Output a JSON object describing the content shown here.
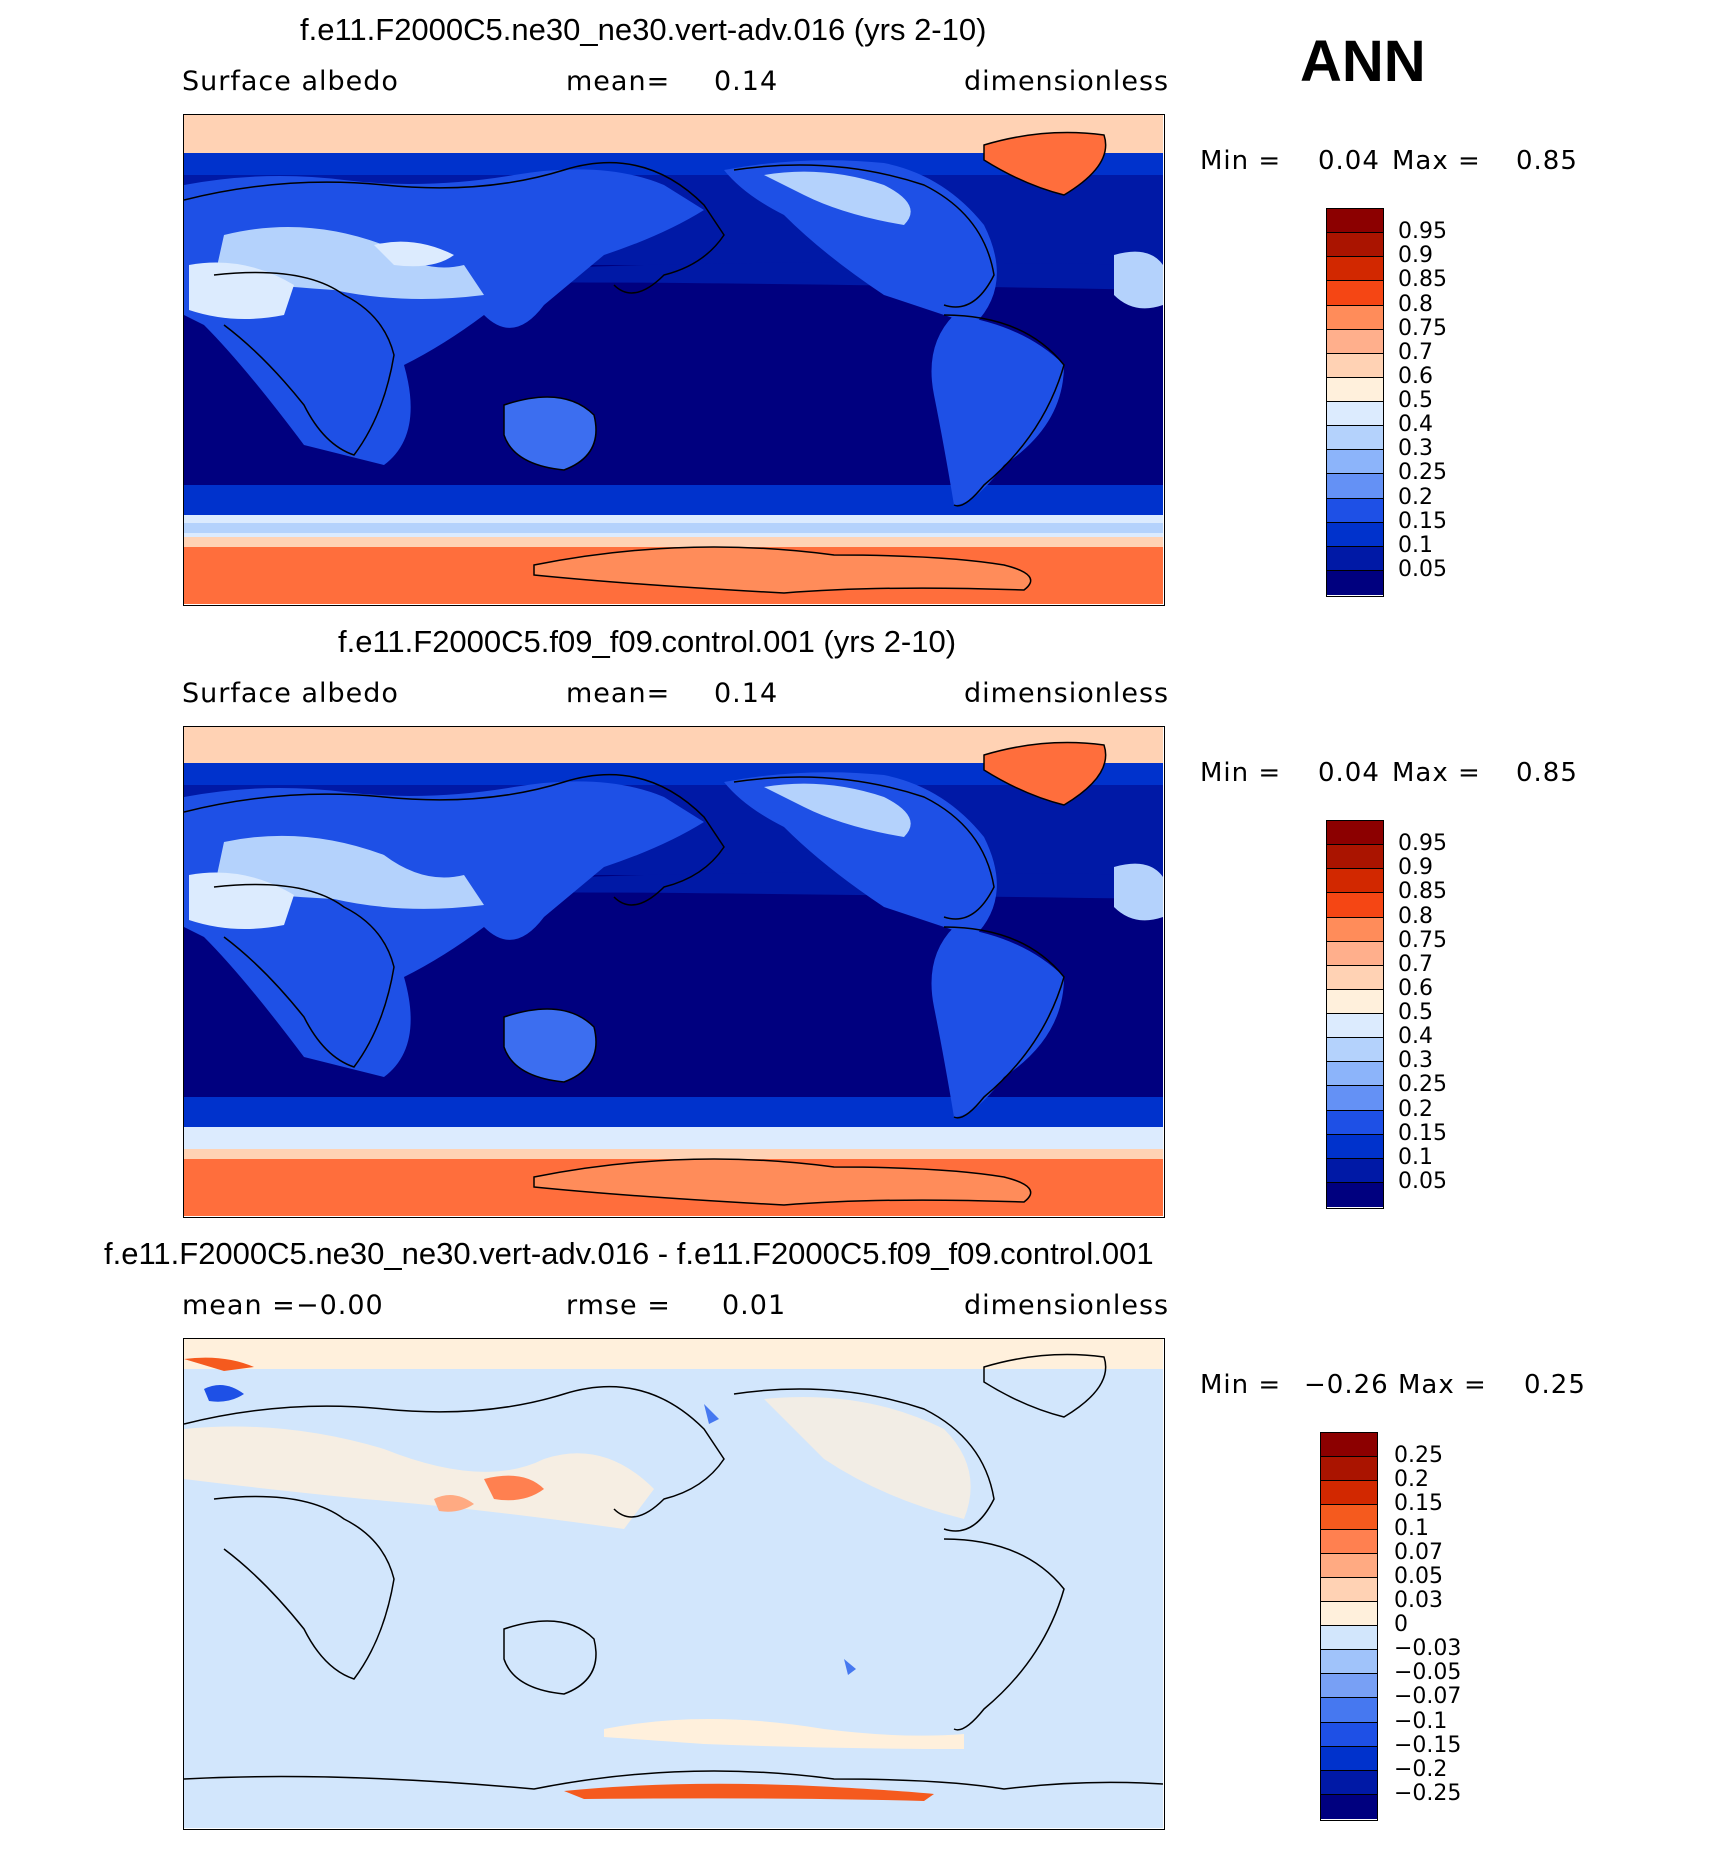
{
  "season": "ANN",
  "units_label": "dimensionless",
  "colors": {
    "abs_scale": [
      "#00007f",
      "#0019a6",
      "#0032cc",
      "#1e50e6",
      "#3c6ef0",
      "#6491f5",
      "#8cb4fa",
      "#b4d2fc",
      "#dcebfe",
      "#fff0dc",
      "#ffd2b4",
      "#ffaf8c",
      "#ff8c5a",
      "#ff6e3c",
      "#f54614",
      "#d22800",
      "#aa1400",
      "#8c0000"
    ],
    "diff_scale": [
      "#00007f",
      "#0019a6",
      "#0032cc",
      "#1e50e6",
      "#4678f0",
      "#78a0f5",
      "#a0c3fa",
      "#d2e6fc",
      "#fff0dc",
      "#ffd2b4",
      "#ffaa82",
      "#ff8050",
      "#f55a1e",
      "#d22800",
      "#aa1400",
      "#8c0000"
    ]
  },
  "panels": [
    {
      "title": "f.e11.F2000C5.ne30_ne30.vert-adv.016 (yrs 2-10)",
      "left_label": "Surface albedo",
      "center_label": "mean=",
      "center_value": "0.14",
      "min_label": "Min =",
      "min_value": "0.04",
      "max_label": "Max =",
      "max_value": "0.85",
      "levels": [
        "0.95",
        "0.9",
        "0.85",
        "0.8",
        "0.75",
        "0.7",
        "0.6",
        "0.5",
        "0.4",
        "0.3",
        "0.25",
        "0.2",
        "0.15",
        "0.1",
        "0.05"
      ]
    },
    {
      "title": "f.e11.F2000C5.f09_f09.control.001 (yrs 2-10)",
      "left_label": "Surface albedo",
      "center_label": "mean=",
      "center_value": "0.14",
      "min_label": "Min =",
      "min_value": "0.04",
      "max_label": "Max =",
      "max_value": "0.85",
      "levels": [
        "0.95",
        "0.9",
        "0.85",
        "0.8",
        "0.75",
        "0.7",
        "0.6",
        "0.5",
        "0.4",
        "0.3",
        "0.25",
        "0.2",
        "0.15",
        "0.1",
        "0.05"
      ]
    },
    {
      "title": "f.e11.F2000C5.ne30_ne30.vert-adv.016 - f.e11.F2000C5.f09_f09.control.001",
      "left_label": "mean =",
      "left_value": "−0.00",
      "center_label": "rmse =",
      "center_value": "0.01",
      "min_label": "Min =",
      "min_value": "−0.26",
      "max_label": "Max =",
      "max_value": "0.25",
      "levels": [
        "0.25",
        "0.2",
        "0.15",
        "0.1",
        "0.07",
        "0.05",
        "0.03",
        "0",
        "−0.03",
        "−0.05",
        "−0.07",
        "−0.1",
        "−0.15",
        "−0.2",
        "−0.25"
      ]
    }
  ]
}
